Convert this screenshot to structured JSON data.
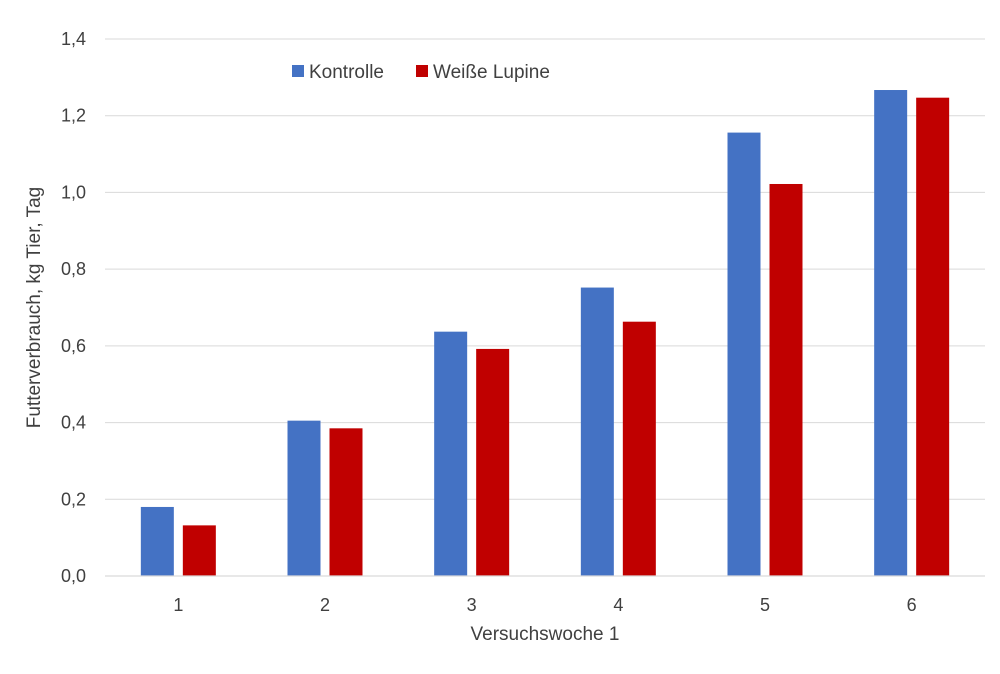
{
  "chart_data": {
    "type": "bar",
    "title": "",
    "xlabel": "Versuchswoche 1",
    "ylabel": "Futterverbrauch, kg Tier, Tag",
    "categories": [
      "1",
      "2",
      "3",
      "4",
      "5",
      "6"
    ],
    "series": [
      {
        "name": "Kontrolle",
        "color": "#4472C4",
        "values": [
          0.18,
          0.405,
          0.637,
          0.752,
          1.156,
          1.267
        ]
      },
      {
        "name": "Weiße Lupine",
        "color": "#C00000",
        "values": [
          0.132,
          0.385,
          0.592,
          0.663,
          1.022,
          1.247
        ]
      }
    ],
    "ylim": [
      0,
      1.4
    ],
    "yticks": [
      "0,0",
      "0,2",
      "0,4",
      "0,6",
      "0,8",
      "1,0",
      "1,2",
      "1,4"
    ],
    "grid": true,
    "legend_position": "top-left"
  }
}
